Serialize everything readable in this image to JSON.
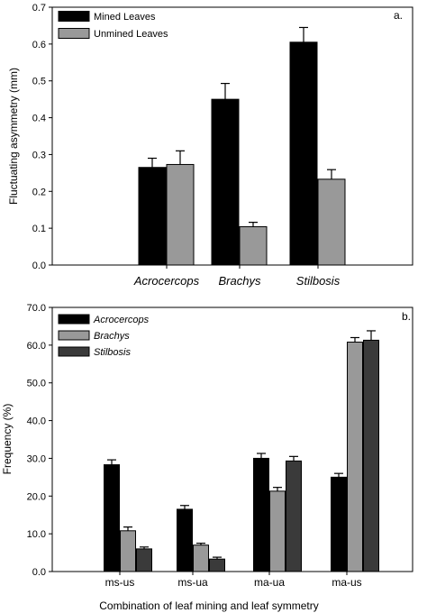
{
  "chart_data": [
    {
      "type": "bar",
      "panel_label": "a.",
      "ylabel": "Fluctuating asymmetry (mm)",
      "xlabel": "",
      "ylim": [
        0,
        0.7
      ],
      "yticks": [
        "0.0",
        "0.1",
        "0.2",
        "0.3",
        "0.4",
        "0.5",
        "0.6",
        "0.7"
      ],
      "categories": [
        "Acrocercops",
        "Brachys",
        "Stilbosis"
      ],
      "series": [
        {
          "name": "Mined Leaves",
          "color": "#000000",
          "values": [
            0.265,
            0.45,
            0.605
          ],
          "errors": [
            0.025,
            0.043,
            0.04
          ]
        },
        {
          "name": "Unmined Leaves",
          "color": "#999999",
          "values": [
            0.273,
            0.104,
            0.233
          ],
          "errors": [
            0.037,
            0.012,
            0.026
          ]
        }
      ],
      "legend_position": "top-left",
      "grid": false
    },
    {
      "type": "bar",
      "panel_label": "b.",
      "ylabel": "Frequency (%)",
      "xlabel": "Combination of leaf mining and leaf symmetry",
      "ylim": [
        0,
        70
      ],
      "yticks": [
        "0.0",
        "10.0",
        "20.0",
        "30.0",
        "40.0",
        "50.0",
        "60.0",
        "70.0"
      ],
      "categories": [
        "ms-us",
        "ms-ua",
        "ma-ua",
        "ma-us"
      ],
      "series": [
        {
          "name": "Acrocercops",
          "color": "#000000",
          "values": [
            28.3,
            16.5,
            30.0,
            25.0
          ],
          "errors": [
            1.3,
            1.0,
            1.3,
            1.0
          ]
        },
        {
          "name": "Brachys",
          "color": "#999999",
          "values": [
            10.8,
            7.0,
            21.3,
            60.8
          ],
          "errors": [
            1.0,
            0.5,
            1.0,
            1.2
          ]
        },
        {
          "name": "Stilbosis",
          "color": "#3a3a3a",
          "values": [
            6.0,
            3.3,
            29.3,
            61.3
          ],
          "errors": [
            0.5,
            0.5,
            1.2,
            2.5
          ]
        }
      ],
      "legend_position": "top-left",
      "grid": false
    }
  ]
}
